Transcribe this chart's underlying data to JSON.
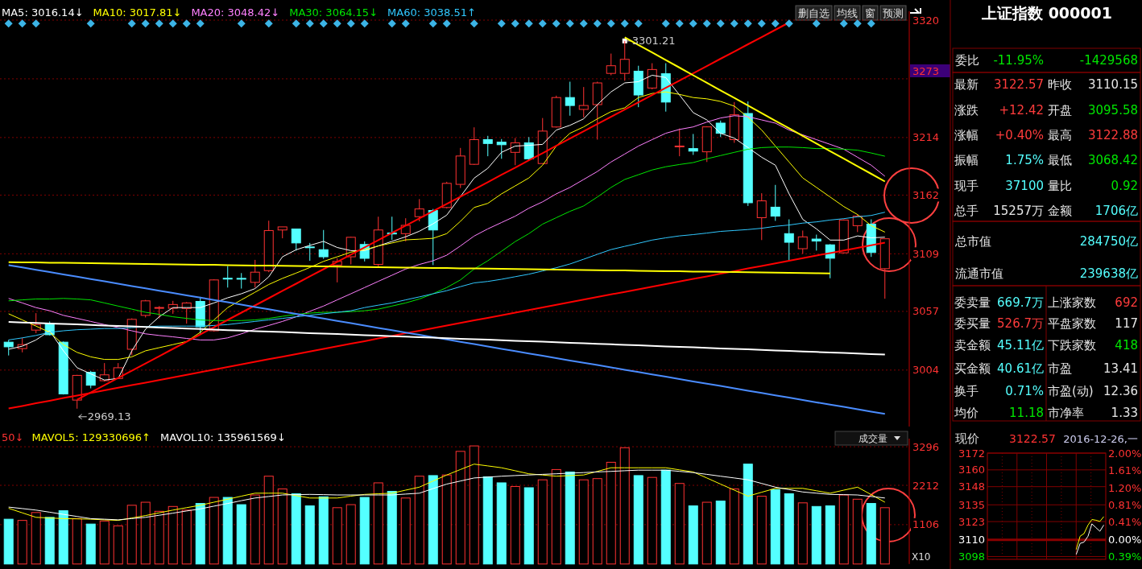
{
  "chart_data": [
    {
      "type": "candlestick",
      "categories": [
        null,
        null,
        null,
        null,
        null,
        null,
        null,
        null,
        null,
        null,
        null,
        null,
        null,
        null,
        null,
        null,
        null,
        null,
        null,
        null,
        null,
        null,
        null,
        null,
        null,
        null,
        null,
        null,
        null,
        null,
        null,
        null,
        null,
        null,
        null,
        null,
        null,
        null,
        null,
        null,
        null,
        null,
        null,
        null,
        null,
        null,
        null,
        null,
        null,
        null,
        null,
        null,
        null,
        null,
        null,
        null,
        null,
        null,
        null,
        null,
        null,
        null,
        null,
        null,
        null
      ],
      "ohlc": [
        [
          3029.2,
          3031.2,
          3017.2,
          3025.0
        ],
        [
          3023.4,
          3033.1,
          3020.0,
          3027.0
        ],
        [
          3040.1,
          3055.4,
          3037.3,
          3045.1
        ],
        [
          3045.9,
          3047.9,
          3035.3,
          3035.9
        ],
        [
          3029.2,
          3029.8,
          2981.9,
          2982.5
        ],
        [
          2976.9,
          2999.7,
          2969.13,
          2999.2
        ],
        [
          3002.0,
          3003.3,
          2987.5,
          2990.3
        ],
        [
          2994.4,
          3010.3,
          2993.6,
          2999.7
        ],
        [
          2996.4,
          3010.3,
          2995.8,
          3006.1
        ],
        [
          3022.8,
          3050.7,
          3017.3,
          3049.8
        ],
        [
          3053.4,
          3067.4,
          3051.5,
          3066.5
        ],
        [
          3059.9,
          3061.8,
          3050.7,
          3060.5
        ],
        [
          3059.8,
          3066.5,
          3054.8,
          3063.2
        ],
        [
          3059.6,
          3065.4,
          3045.9,
          3064.6
        ],
        [
          3066.0,
          3070.1,
          3036.7,
          3043.1
        ],
        [
          3039.5,
          3086.0,
          3038.7,
          3085.4
        ],
        [
          3086.9,
          3097.9,
          3078.5,
          3086.3
        ],
        [
          3086.8,
          3091.6,
          3077.6,
          3086.1
        ],
        [
          3083.2,
          3103.5,
          3078.5,
          3092.4
        ],
        [
          3093.8,
          3138.9,
          3092.4,
          3130.0
        ],
        [
          3130.5,
          3133.3,
          3123.0,
          3133.3
        ],
        [
          3131.4,
          3131.4,
          3111.9,
          3118.8
        ],
        [
          3115.2,
          3118.8,
          3102.7,
          3114.7
        ],
        [
          3112.7,
          3130.5,
          3104.4,
          3106.3
        ],
        [
          3098.8,
          3104.9,
          3083.2,
          3102.1
        ],
        [
          3106.3,
          3124.4,
          3099.4,
          3123.9
        ],
        [
          3117.4,
          3120.2,
          3102.1,
          3104.9
        ],
        [
          3099.4,
          3142.5,
          3096.6,
          3130.5
        ],
        [
          3127.8,
          3142.5,
          3121.6,
          3126.9
        ],
        [
          3127.2,
          3141.1,
          3120.2,
          3134.7
        ],
        [
          3142.5,
          3158.4,
          3138.3,
          3149.5
        ],
        [
          3148.1,
          3149.5,
          3098.8,
          3130.5
        ],
        [
          3150.8,
          3174.0,
          3150.0,
          3172.6
        ],
        [
          3171.7,
          3204.6,
          3168.4,
          3197.3
        ],
        [
          3189.8,
          3223.2,
          3189.2,
          3212.1
        ],
        [
          3212.1,
          3215.5,
          3197.1,
          3208.6
        ],
        [
          3209.8,
          3212.6,
          3194.8,
          3207.5
        ],
        [
          3200.6,
          3213.5,
          3189.0,
          3209.2
        ],
        [
          3209.2,
          3214.4,
          3193.4,
          3194.8
        ],
        [
          3190.5,
          3231.6,
          3190.5,
          3219.8
        ],
        [
          3223.5,
          3251.8,
          3223.0,
          3250.1
        ],
        [
          3250.1,
          3264.4,
          3233.7,
          3242.9
        ],
        [
          3239.4,
          3259.6,
          3232.2,
          3242.9
        ],
        [
          3243.7,
          3264.4,
          3212.1,
          3263.3
        ],
        [
          3271.9,
          3289.8,
          3270.2,
          3278.8
        ],
        [
          3271.9,
          3301.21,
          3265.3,
          3284.6
        ],
        [
          3273.9,
          3278.8,
          3241.4,
          3252.4
        ],
        [
          3258.7,
          3281.1,
          3257.5,
          3275.4
        ],
        [
          3271.6,
          3281.1,
          3237.4,
          3246.0
        ],
        [
          3205.7,
          3222.1,
          3197.1,
          3206.3
        ],
        [
          3204.0,
          3217.2,
          3198.3,
          3201.7
        ],
        [
          3201.1,
          3224.2,
          3191.9,
          3223.6
        ],
        [
          3227.0,
          3229.3,
          3214.4,
          3217.8
        ],
        [
          3212.1,
          3246.0,
          3209.2,
          3234.5
        ],
        [
          3235.7,
          3246.6,
          3152.2,
          3155.1
        ],
        [
          3141.6,
          3163.7,
          3121.4,
          3156.8
        ],
        [
          3151.1,
          3171.2,
          3138.7,
          3143.0
        ],
        [
          3127.2,
          3140.1,
          3103.3,
          3119.4
        ],
        [
          3113.6,
          3130.0,
          3109.0,
          3124.3
        ],
        [
          3122.3,
          3126.3,
          3111.9,
          3120.5
        ],
        [
          3117.1,
          3117.7,
          3086.9,
          3105.0
        ],
        [
          3109.9,
          3140.1,
          3109.0,
          3139.5
        ],
        [
          3134.4,
          3144.4,
          3128.6,
          3143.0
        ],
        [
          3135.8,
          3140.1,
          3106.2,
          3110.15
        ],
        [
          3095.58,
          3122.88,
          3068.42,
          3122.57
        ]
      ],
      "series": [
        {
          "type": "line",
          "name": "MA5: 3016.14↓",
          "color": "#ffffff",
          "values": [
            3022.8,
            3025.6,
            3031.2,
            3039.5,
            3021.4,
            3006.1,
            3000.6,
            2995.0,
            2996.4,
            3021.4,
            3040.9,
            3052.1,
            3060.4,
            3060.4,
            3060.4,
            3064.6,
            3069.3,
            3072.9,
            3077.6,
            3088.2,
            3106.3,
            3112.7,
            3116.6,
            3120.2,
            3114.7,
            3111.9,
            3111.9,
            3116.1,
            3120.2,
            3124.4,
            3129.4,
            3136.1,
            3143.9,
            3160.6,
            3177.3,
            3186.2,
            3200.6,
            3206.3,
            3206.9,
            3207.8,
            3220.7,
            3225.0,
            3230.8,
            3243.7,
            3255.2,
            3263.3,
            3264.4,
            3270.2,
            3268.2,
            3252.4,
            3236.5,
            3229.9,
            3217.8,
            3213.5,
            3204.9,
            3196.2,
            3189.0,
            3163.1,
            3140.1,
            3131.5,
            3121.4,
            3121.4,
            3125.2,
            3123.4,
            3124.0
          ]
        },
        {
          "type": "line",
          "name": "MA10: 3017.81↓",
          "color": "#ffff00",
          "values": [
            3054.8,
            3049.3,
            3043.7,
            3038.1,
            3027.0,
            3020.0,
            3015.9,
            3013.6,
            3013.6,
            3015.9,
            3021.4,
            3024.2,
            3027.0,
            3029.8,
            3038.1,
            3049.3,
            3060.4,
            3067.4,
            3074.3,
            3081.3,
            3086.8,
            3091.6,
            3096.6,
            3102.1,
            3106.3,
            3110.5,
            3112.7,
            3116.1,
            3118.8,
            3121.6,
            3122.2,
            3123.0,
            3127.2,
            3138.3,
            3150.8,
            3154.5,
            3163.1,
            3170.3,
            3177.5,
            3189.0,
            3206.3,
            3217.8,
            3223.6,
            3230.8,
            3237.4,
            3240.8,
            3250.1,
            3253.8,
            3255.2,
            3252.9,
            3250.1,
            3248.9,
            3246.6,
            3242.3,
            3232.2,
            3220.7,
            3206.3,
            3191.9,
            3177.5,
            3168.9,
            3160.3,
            3151.6,
            3144.4,
            3134.4,
            3128.6
          ]
        },
        {
          "type": "line",
          "name": "MA20: 3048.42↓",
          "color": "#ff80ff",
          "values": [
            3068.7,
            3064.6,
            3060.4,
            3057.6,
            3053.4,
            3050.7,
            3047.9,
            3045.1,
            3042.3,
            3039.5,
            3036.7,
            3035.3,
            3034.0,
            3032.6,
            3031.2,
            3031.2,
            3033.1,
            3036.7,
            3040.9,
            3044.3,
            3047.9,
            3052.1,
            3057.1,
            3061.8,
            3067.4,
            3072.9,
            3078.5,
            3084.1,
            3089.6,
            3095.2,
            3099.4,
            3102.7,
            3107.7,
            3116.1,
            3125.0,
            3131.5,
            3137.2,
            3143.0,
            3150.2,
            3155.9,
            3163.1,
            3168.9,
            3176.1,
            3183.3,
            3191.9,
            3199.1,
            3206.3,
            3212.1,
            3217.8,
            3221.3,
            3223.6,
            3227.9,
            3231.6,
            3233.7,
            3232.8,
            3229.9,
            3227.0,
            3220.7,
            3216.4,
            3212.1,
            3207.8,
            3203.4,
            3196.2,
            3189.0,
            3179.0
          ]
        },
        {
          "type": "line",
          "name": "MA30: 3064.15↓",
          "color": "#00e600",
          "values": [
            3066.5,
            3067.4,
            3068.2,
            3068.2,
            3068.7,
            3068.2,
            3067.4,
            3064.6,
            3061.8,
            3059.0,
            3056.2,
            3054.3,
            3052.1,
            3050.7,
            3049.3,
            3048.7,
            3048.7,
            3048.7,
            3049.3,
            3050.7,
            3052.6,
            3054.3,
            3055.4,
            3056.2,
            3056.2,
            3056.8,
            3057.6,
            3059.0,
            3061.8,
            3064.6,
            3068.2,
            3072.9,
            3078.5,
            3085.4,
            3095.2,
            3102.7,
            3111.3,
            3120.0,
            3127.2,
            3135.8,
            3141.6,
            3147.3,
            3152.2,
            3160.3,
            3168.9,
            3176.1,
            3180.4,
            3184.7,
            3187.6,
            3189.6,
            3191.4,
            3194.8,
            3197.7,
            3200.6,
            3203.4,
            3204.9,
            3205.4,
            3205.4,
            3204.9,
            3204.0,
            3204.0,
            3203.4,
            3202.6,
            3200.0,
            3197.1
          ]
        },
        {
          "type": "line",
          "name": "MA60: 3038.51↑",
          "color": "#30c8ff",
          "values": [
            3031.2,
            3033.1,
            3035.3,
            3038.1,
            3039.5,
            3040.4,
            3040.9,
            3041.5,
            3041.5,
            3042.3,
            3043.1,
            3043.7,
            3043.7,
            3043.7,
            3043.7,
            3044.3,
            3045.1,
            3046.5,
            3047.9,
            3049.3,
            3050.7,
            3052.1,
            3053.4,
            3054.8,
            3056.2,
            3057.6,
            3060.4,
            3062.6,
            3064.6,
            3067.4,
            3070.1,
            3072.9,
            3075.7,
            3079.3,
            3082.7,
            3084.0,
            3086.0,
            3088.3,
            3090.6,
            3093.5,
            3096.4,
            3099.8,
            3104.1,
            3108.5,
            3112.8,
            3115.7,
            3118.5,
            3121.4,
            3123.4,
            3125.2,
            3126.3,
            3127.7,
            3129.2,
            3130.0,
            3130.9,
            3132.1,
            3133.8,
            3135.0,
            3136.7,
            3137.8,
            3139.5,
            3140.7,
            3142.4,
            3143.6,
            3146.5
          ]
        },
        {
          "type": "line",
          "color": "#ff0000",
          "values": [
            null,
            null,
            null,
            null,
            null,
            2977.2,
            2983.8,
            2990.3,
            2996.9,
            3003.4,
            3010.0,
            3016.5,
            3023.1,
            3029.6,
            3036.2,
            3042.7,
            3049.3,
            3055.8,
            3062.4,
            3068.9,
            3075.5,
            3082.0,
            3088.6,
            3095.1,
            3101.7,
            3108.2,
            3114.8,
            3121.3,
            3127.9,
            3134.4,
            3141.0,
            3147.5,
            3154.1,
            3160.6,
            3167.2,
            3173.7,
            3180.3,
            3186.8,
            3193.4,
            3199.9,
            3206.5,
            3213.0,
            3219.6,
            3226.1,
            3232.7,
            3239.2,
            3245.8,
            3252.3,
            3258.9,
            3265.4,
            3272.0,
            3278.5,
            3285.1,
            3291.6,
            3298.2,
            3304.7,
            3311.3,
            3317.8,
            null,
            null,
            null,
            null,
            null,
            null,
            null
          ]
        },
        {
          "type": "line",
          "color": "#ff0000",
          "values": [
            2969.3,
            2971.6,
            2974.0,
            2976.3,
            2978.7,
            2981.0,
            2983.3,
            2985.7,
            2988.0,
            2990.4,
            2992.7,
            2995.0,
            2997.4,
            2999.7,
            3002.1,
            3004.4,
            3006.7,
            3009.1,
            3011.4,
            3013.8,
            3016.1,
            3018.4,
            3020.8,
            3023.1,
            3025.5,
            3027.8,
            3030.1,
            3032.5,
            3034.8,
            3037.2,
            3039.5,
            3041.8,
            3044.2,
            3046.5,
            3048.9,
            3051.2,
            3053.5,
            3055.9,
            3058.2,
            3060.6,
            3062.9,
            3065.2,
            3067.6,
            3069.9,
            3072.3,
            3074.6,
            3076.9,
            3079.3,
            3081.6,
            3084.0,
            3086.3,
            3088.6,
            3091.0,
            3093.3,
            3095.7,
            3098.0,
            3100.3,
            3102.7,
            3105.0,
            3107.4,
            3109.7,
            3112.0,
            3114.4,
            3116.7,
            3119.1
          ]
        },
        {
          "type": "line",
          "color": "#ffff00",
          "values": [
            3101.5,
            3101.3,
            3101.2,
            3101.0,
            3100.8,
            3100.7,
            3100.5,
            3100.3,
            3100.1,
            3100.0,
            3099.8,
            3099.6,
            3099.5,
            3099.3,
            3099.1,
            3099.0,
            3098.8,
            3098.6,
            3098.4,
            3098.3,
            3098.1,
            3097.9,
            3097.8,
            3097.6,
            3097.4,
            3097.3,
            3097.1,
            3096.9,
            3096.7,
            3096.6,
            3096.4,
            3096.2,
            3096.1,
            3095.9,
            3095.7,
            3095.6,
            3095.4,
            3095.2,
            3095.0,
            3094.9,
            3094.7,
            3094.5,
            3094.4,
            3094.2,
            3094.0,
            3093.9,
            3093.7,
            3093.5,
            3093.3,
            3093.2,
            3093.0,
            3092.8,
            3092.7,
            3092.5,
            3092.3,
            3092.2,
            3092.0,
            3091.8,
            3091.6,
            3091.5,
            3091.3,
            null,
            null,
            null,
            null
          ]
        },
        {
          "type": "line",
          "color": "#4a8cff",
          "values": [
            3098.8,
            3096.7,
            3094.6,
            3092.5,
            3090.4,
            3088.3,
            3086.2,
            3084.1,
            3082.0,
            3079.9,
            3077.8,
            3075.7,
            3073.6,
            3071.5,
            3069.4,
            3067.3,
            3065.2,
            3063.1,
            3061.0,
            3058.9,
            3056.8,
            3054.7,
            3052.6,
            3050.5,
            3048.4,
            3046.3,
            3044.2,
            3042.1,
            3040.0,
            3037.9,
            3035.8,
            3033.7,
            3031.6,
            3029.5,
            3027.4,
            3025.3,
            3023.2,
            3021.1,
            3019.0,
            3016.9,
            3014.8,
            3012.7,
            3010.6,
            3008.5,
            3006.4,
            3004.3,
            3002.2,
            3000.1,
            2998.0,
            2995.9,
            2993.8,
            2991.7,
            2989.6,
            2987.5,
            2985.4,
            2983.3,
            2981.2,
            2979.1,
            2977.0,
            2974.9,
            2972.8,
            2970.7,
            2968.6,
            2966.5,
            2964.4
          ]
        },
        {
          "type": "line",
          "color": "#ffffff",
          "values": [
            3047.5,
            3047.0,
            3046.6,
            3046.1,
            3045.7,
            3045.2,
            3044.7,
            3044.3,
            3043.8,
            3043.4,
            3042.9,
            3042.4,
            3042.0,
            3041.5,
            3041.1,
            3040.6,
            3040.1,
            3039.7,
            3039.2,
            3038.8,
            3038.3,
            3037.8,
            3037.4,
            3036.9,
            3036.5,
            3036.0,
            3035.5,
            3035.1,
            3034.6,
            3034.2,
            3033.7,
            3033.2,
            3032.8,
            3032.3,
            3031.9,
            3031.4,
            3030.9,
            3030.5,
            3030.0,
            3029.6,
            3029.1,
            3028.6,
            3028.2,
            3027.7,
            3027.3,
            3026.8,
            3026.3,
            3025.9,
            3025.4,
            3025.0,
            3024.5,
            3024.0,
            3023.6,
            3023.1,
            3022.7,
            3022.2,
            3021.7,
            3021.3,
            3020.8,
            3020.4,
            3019.9,
            3019.4,
            3019.0,
            3018.5,
            3018.1
          ]
        },
        {
          "type": "line",
          "color": "#ffff00",
          "values": [
            null,
            null,
            null,
            null,
            null,
            null,
            null,
            null,
            null,
            null,
            null,
            null,
            null,
            null,
            null,
            null,
            null,
            null,
            null,
            null,
            null,
            null,
            null,
            null,
            null,
            null,
            null,
            null,
            null,
            null,
            null,
            null,
            null,
            null,
            null,
            null,
            null,
            null,
            null,
            null,
            null,
            null,
            null,
            null,
            null,
            3304.5,
            3297.6,
            3290.8,
            3283.9,
            3277.1,
            3270.2,
            3263.4,
            3256.5,
            3249.7,
            3242.8,
            3236.0,
            3229.1,
            3222.3,
            3215.4,
            3208.6,
            3201.7,
            3194.9,
            3188.0,
            3181.2,
            3174.3
          ]
        },
        {
          "type": "scatter",
          "marker": "diamond",
          "color": "#3cb4e6",
          "values": [
            3317,
            3317,
            3317,
            null,
            null,
            null,
            3317,
            null,
            null,
            3317,
            3317,
            3317,
            3317,
            3317,
            3317,
            null,
            null,
            3317,
            null,
            3317,
            null,
            3317,
            3317,
            3317,
            3317,
            3317,
            3317,
            null,
            3317,
            3317,
            null,
            3317,
            3317,
            null,
            3317,
            null,
            3317,
            3317,
            3317,
            3317,
            3317,
            3317,
            3317,
            3317,
            3317,
            3317,
            3317,
            null,
            3317,
            3317,
            3317,
            3317,
            3317,
            3317,
            3317,
            3317,
            3317,
            3317,
            null,
            3317,
            null,
            3317,
            3317,
            3317,
            null
          ]
        }
      ],
      "ylim": [
        2953,
        3328
      ],
      "yticks": [
        3004,
        3057,
        3109,
        3162,
        3214,
        {
          "value": 3267,
          "label": null
        },
        3320
      ],
      "grid": "y",
      "legend": "top left",
      "tick_labels": "y",
      "annotations": [
        "3301.21",
        "2969.13",
        "3273",
        "删自选",
        "均线",
        "窗",
        "预测"
      ]
    },
    {
      "type": "other",
      "title": "上证指数 000001",
      "annotations": [
        "委比",
        "-11.95%",
        "-1429568",
        "最新",
        "3122.57",
        "昨收",
        "3110.15",
        "涨跌",
        "+12.42",
        "开盘",
        "3095.58",
        "涨幅",
        "+0.40%",
        "最高",
        "3122.88",
        "振幅",
        "1.75%",
        "最低",
        "3068.42",
        "现手",
        "37100",
        "量比",
        "0.92",
        "总手",
        "15257万",
        "金额",
        "1706亿",
        "总市值",
        "284750亿",
        "流通市值",
        "239638亿",
        "委卖量",
        "669.7万",
        "上涨家数",
        "692",
        "委买量",
        "526.7万",
        "平盘家数",
        "117",
        "卖金额",
        "45.11亿",
        "下跌家数",
        "418",
        "买金额",
        "40.61亿",
        "市盈",
        "13.41",
        "换手",
        "0.71%",
        "市盈(动)",
        "12.36",
        "均价",
        "11.18",
        "市净率",
        "1.33"
      ]
    },
    {
      "type": "bar",
      "categories": [
        null,
        null,
        null,
        null,
        null,
        null,
        null,
        null,
        null,
        null,
        null,
        null,
        null,
        null,
        null,
        null,
        null,
        null,
        null,
        null,
        null,
        null,
        null,
        null,
        null,
        null,
        null,
        null,
        null,
        null,
        null,
        null,
        null,
        null,
        null,
        null,
        null,
        null,
        null,
        null,
        null,
        null,
        null,
        null,
        null,
        null,
        null,
        null,
        null,
        null,
        null,
        null,
        null,
        null,
        null,
        null,
        null,
        null,
        null,
        null,
        null,
        null,
        null,
        null,
        null
      ],
      "series": [
        {
          "type": "bar",
          "values": [
            1259,
            1225,
            1447,
            1311,
            1498,
            1276,
            1123,
            1208,
            1072,
            1651,
            1736,
            1481,
            1617,
            1515,
            1702,
            1872,
            1872,
            1668,
            1940,
            2468,
            2110,
            1974,
            1634,
            1889,
            1583,
            1668,
            1872,
            2281,
            2042,
            1855,
            2468,
            2485,
            2502,
            3166,
            3319,
            2451,
            2281,
            2179,
            2144,
            2366,
            2655,
            2587,
            2366,
            2400,
            2859,
            3268,
            2485,
            2434,
            2638,
            2264,
            1634,
            1736,
            1770,
            2110,
            2808,
            1906,
            2093,
            1974,
            1719,
            1617,
            1634,
            1940,
            1821,
            1702,
            1583
          ],
          "colors": [
            "#54ffff",
            "#ff3232",
            "#ff3232",
            "#54ffff",
            "#54ffff",
            "#ff3232",
            "#54ffff",
            "#ff3232",
            "#ff3232",
            "#ff3232",
            "#ff3232",
            "#ff3232",
            "#ff3232",
            "#ff3232",
            "#54ffff",
            "#ff3232",
            "#54ffff",
            "#54ffff",
            "#ff3232",
            "#ff3232",
            "#ff3232",
            "#54ffff",
            "#54ffff",
            "#54ffff",
            "#ff3232",
            "#ff3232",
            "#54ffff",
            "#ff3232",
            "#54ffff",
            "#ff3232",
            "#ff3232",
            "#54ffff",
            "#ff3232",
            "#ff3232",
            "#ff3232",
            "#54ffff",
            "#54ffff",
            "#ff3232",
            "#54ffff",
            "#ff3232",
            "#ff3232",
            "#54ffff",
            "#ff3232",
            "#ff3232",
            "#ff3232",
            "#ff3232",
            "#54ffff",
            "#ff3232",
            "#54ffff",
            "#ff3232",
            "#54ffff",
            "#ff3232",
            "#54ffff",
            "#ff3232",
            "#54ffff",
            "#ff3232",
            "#54ffff",
            "#54ffff",
            "#ff3232",
            "#54ffff",
            "#54ffff",
            "#ff3232",
            "#ff3232",
            "#54ffff",
            "#ff3232"
          ]
        },
        {
          "type": "line",
          "name": "MAVOL5: 129330696↑",
          "color": "#ffff00",
          "values": [
            1566,
            1439,
            1311,
            1294,
            1276,
            1268,
            1259,
            1242,
            1225,
            1294,
            1362,
            1439,
            1515,
            1583,
            1651,
            1736,
            1821,
            1906,
            1991,
            1991,
            1991,
            1923,
            1855,
            1855,
            1855,
            1906,
            1957,
            1974,
            1991,
            2076,
            2161,
            2332,
            2502,
            2655,
            2808,
            2757,
            2706,
            2621,
            2536,
            2502,
            2468,
            2485,
            2502,
            2604,
            2706,
            2706,
            2706,
            2706,
            2706,
            2647,
            2587,
            2417,
            2247,
            2077,
            1906,
            2017,
            2127,
            2127,
            2127,
            2059,
            1991,
            2076,
            2161,
            1949,
            1736
          ]
        },
        {
          "type": "line",
          "name": "MAVOL10: 135961569↓",
          "color": "#ffffff",
          "values": [
            1600,
            1558,
            1515,
            1456,
            1396,
            1336,
            1276,
            1259,
            1242,
            1277,
            1311,
            1371,
            1430,
            1490,
            1549,
            1626,
            1702,
            1779,
            1855,
            1898,
            1940,
            1949,
            1957,
            1949,
            1940,
            1940,
            1940,
            1940,
            1940,
            1966,
            1991,
            2119,
            2247,
            2332,
            2417,
            2443,
            2468,
            2485,
            2502,
            2519,
            2536,
            2553,
            2570,
            2587,
            2604,
            2621,
            2638,
            2638,
            2638,
            2604,
            2570,
            2519,
            2468,
            2417,
            2366,
            2264,
            2161,
            2093,
            2025,
            1991,
            1957,
            1949,
            1940,
            1898,
            1855
          ]
        }
      ],
      "ylim": [
        0,
        3524
      ],
      "yticks": [
        1106,
        2212,
        3296
      ],
      "grid": "y",
      "legend": "top left",
      "tick_labels": "y",
      "annotations": [
        "50↓",
        "成交量",
        "X10"
      ]
    },
    {
      "type": "line",
      "categories": [
        null,
        null,
        null,
        null,
        null,
        null,
        null,
        null,
        null,
        null,
        null,
        null,
        null,
        null,
        null,
        null,
        null,
        null,
        null,
        null,
        null,
        null,
        null,
        null,
        null,
        null,
        null,
        null,
        null,
        null
      ],
      "series": [
        {
          "color": "#ffffff",
          "values": [
            null,
            null,
            null,
            null,
            null,
            null,
            null,
            null,
            null,
            null,
            null,
            null,
            null,
            null,
            null,
            null,
            null,
            null,
            null,
            null,
            null,
            null,
            3099.5,
            3107.4,
            3108.3,
            3112.6,
            3121.4,
            3118.7,
            3116.1,
            3120.5
          ]
        },
        {
          "color": "#ffff00",
          "values": [
            null,
            null,
            null,
            null,
            null,
            null,
            null,
            null,
            null,
            null,
            null,
            null,
            null,
            null,
            null,
            null,
            null,
            null,
            null,
            null,
            null,
            null,
            3103.0,
            3112.6,
            3114.4,
            3120.5,
            3124.5,
            3124.0,
            3123.1,
            3126.6
          ]
        }
      ],
      "ylim": [
        3096,
        3172
      ],
      "yticks": [
        3098,
        3110,
        3123,
        3135,
        3148,
        3160,
        3172
      ],
      "y2lim": [
        -0.45,
        2.0
      ],
      "y2ticks": [
        {
          "value": -0.39,
          "label": "0.39%"
        },
        {
          "value": 0,
          "label": "0.00%"
        },
        {
          "value": 0.41,
          "label": "0.41%"
        },
        {
          "value": 0.81,
          "label": "0.81%"
        },
        {
          "value": 1.2,
          "label": "1.20%"
        },
        {
          "value": 1.61,
          "label": "1.61%"
        },
        {
          "value": 2,
          "label": "2.00%"
        }
      ],
      "grid": true,
      "ref_lines": [
        {
          "axis": "y",
          "value": 3110,
          "color": "#8b0000"
        }
      ],
      "tick_labels": "y",
      "annotations": [
        "现价",
        "3122.57",
        "2016-12-26,一"
      ]
    }
  ]
}
